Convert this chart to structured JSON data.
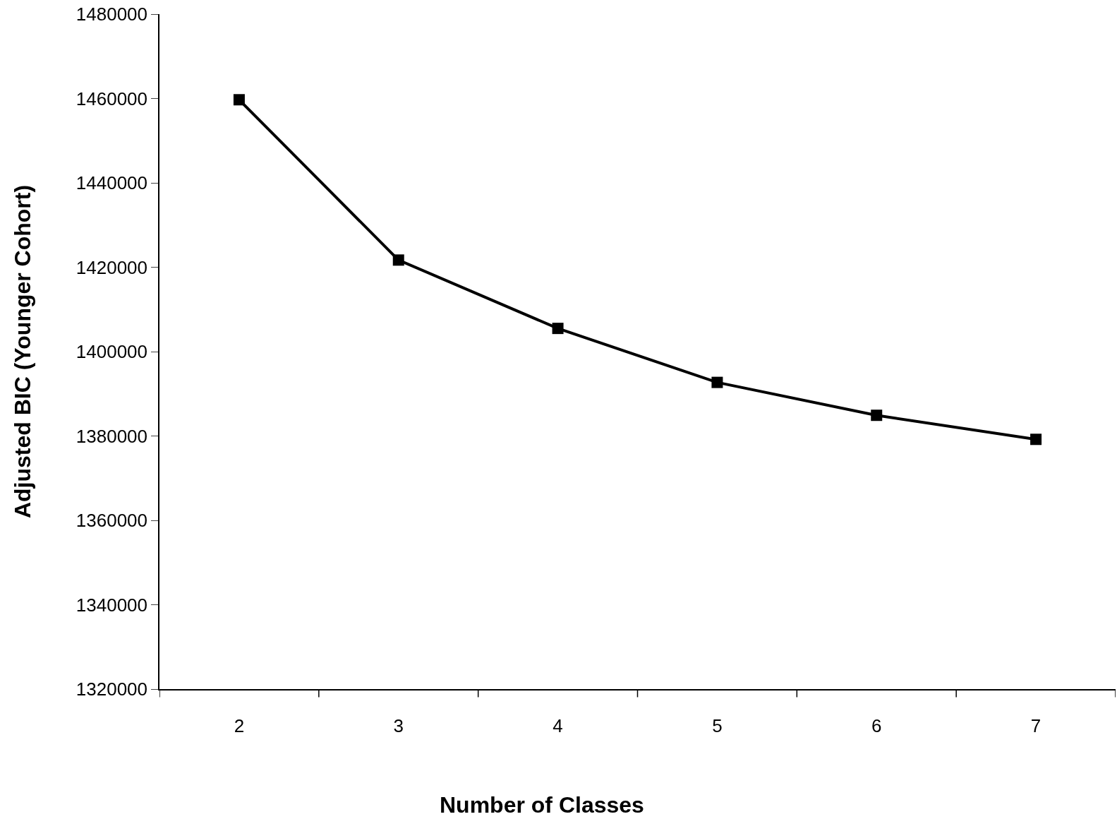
{
  "chart_data": {
    "type": "line",
    "xlabel": "Number of Classes",
    "ylabel": "Adjusted BIC (Younger Cohort)",
    "categories": [
      "2",
      "3",
      "4",
      "5",
      "6",
      "7"
    ],
    "series": [
      {
        "color": "#000000",
        "values": [
          1459700,
          1421700,
          1405500,
          1392700,
          1384900,
          1379200
        ]
      }
    ],
    "ylim": [
      1320000,
      1480000
    ],
    "yticks": [
      1320000,
      1340000,
      1360000,
      1380000,
      1400000,
      1420000,
      1440000,
      1460000,
      1480000
    ],
    "marker": "square",
    "line_style": "solid"
  }
}
